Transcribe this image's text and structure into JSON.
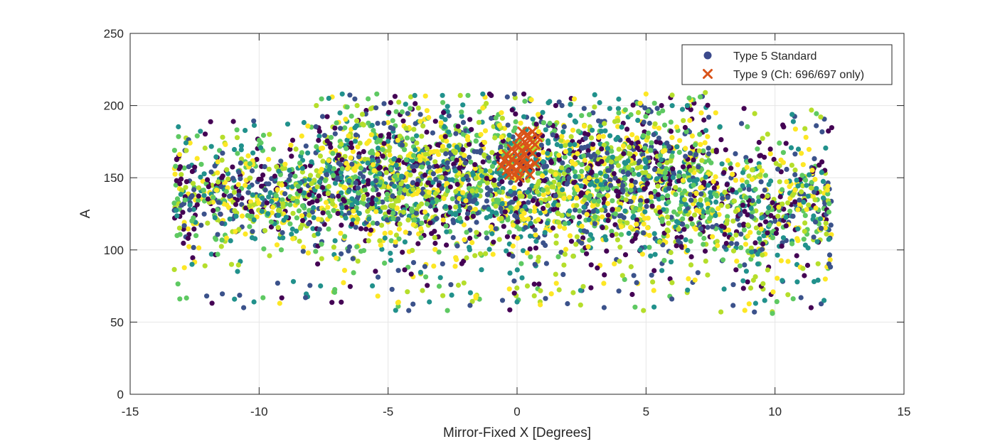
{
  "chart_data": {
    "type": "scatter",
    "title": "",
    "xlabel": "Mirror-Fixed X [Degrees]",
    "ylabel": "A",
    "xlim": [
      -15,
      15
    ],
    "ylim": [
      0,
      250
    ],
    "xticks": [
      -15,
      -10,
      -5,
      0,
      5,
      10,
      15
    ],
    "yticks": [
      0,
      50,
      100,
      150,
      200,
      250
    ],
    "grid": true,
    "legend_position": "top-right",
    "colormap": [
      "#440154",
      "#3b528b",
      "#21918c",
      "#5ec962",
      "#b5de2b",
      "#fde725"
    ],
    "series": [
      {
        "name": "Type 5 Standard",
        "marker": "circle",
        "legend_color": "#3b4a8c",
        "clusters": [
          {
            "x_range": [
              -13.3,
              -7.8
            ],
            "y_center": 138,
            "y_spread": 16,
            "y_range": [
              60,
              190
            ],
            "density": 0.55
          },
          {
            "x_range": [
              -7.8,
              7.5
            ],
            "y_center": 148,
            "y_spread": 22,
            "y_range": [
              58,
              208
            ],
            "density": 1.0
          },
          {
            "x_range": [
              7.5,
              12.2
            ],
            "y_center": 128,
            "y_spread": 20,
            "y_range": [
              57,
              198
            ],
            "density": 0.6
          }
        ],
        "points": [
          [
            -13.2,
            148
          ],
          [
            -13.0,
            131
          ],
          [
            -12.6,
            90
          ],
          [
            -12.4,
            179
          ],
          [
            -12.1,
            89
          ],
          [
            -11.6,
            161
          ],
          [
            -11.0,
            189
          ],
          [
            -10.6,
            60
          ],
          [
            -10.2,
            64
          ],
          [
            -10.0,
            176
          ],
          [
            -9.6,
            180
          ],
          [
            -9.2,
            63
          ],
          [
            -8.7,
            176
          ],
          [
            -8.2,
            67
          ],
          [
            -7.3,
            205
          ],
          [
            -7.0,
            188
          ],
          [
            -6.2,
            200
          ],
          [
            -5.4,
            68
          ],
          [
            -4.9,
            202
          ],
          [
            -4.2,
            58
          ],
          [
            -3.4,
            64
          ],
          [
            -2.7,
            58
          ],
          [
            -2.2,
            207
          ],
          [
            -1.6,
            68
          ],
          [
            -1.0,
            207
          ],
          [
            -0.1,
            208
          ],
          [
            0.0,
            64
          ],
          [
            0.3,
            203
          ],
          [
            0.4,
            75
          ],
          [
            0.9,
            62
          ],
          [
            1.5,
            200
          ],
          [
            2.6,
            198
          ],
          [
            3.2,
            202
          ],
          [
            4.2,
            197
          ],
          [
            4.9,
            58
          ],
          [
            5.0,
            208
          ],
          [
            5.6,
            200
          ],
          [
            6.0,
            66
          ],
          [
            6.6,
            200
          ],
          [
            7.1,
            206
          ],
          [
            7.3,
            209
          ],
          [
            7.7,
            195
          ],
          [
            8.8,
            198
          ],
          [
            9.2,
            57
          ],
          [
            9.6,
            65
          ],
          [
            9.9,
            56
          ],
          [
            10.5,
            69
          ],
          [
            11.2,
            178
          ],
          [
            11.4,
            60
          ],
          [
            11.6,
            186
          ],
          [
            11.9,
            65
          ],
          [
            12.1,
            132
          ]
        ]
      },
      {
        "name": "Type 9 (Ch: 696/697 only)",
        "marker": "x",
        "legend_color": "#d95319",
        "points": [
          [
            -0.6,
            158
          ],
          [
            -0.5,
            162
          ],
          [
            -0.4,
            155
          ],
          [
            -0.4,
            166
          ],
          [
            -0.3,
            152
          ],
          [
            -0.3,
            160
          ],
          [
            -0.2,
            163
          ],
          [
            -0.2,
            157
          ],
          [
            -0.1,
            168
          ],
          [
            -0.1,
            152
          ],
          [
            0.0,
            161
          ],
          [
            0.0,
            172
          ],
          [
            0.0,
            155
          ],
          [
            0.1,
            164
          ],
          [
            0.1,
            178
          ],
          [
            0.1,
            158
          ],
          [
            0.2,
            169
          ],
          [
            0.2,
            182
          ],
          [
            0.2,
            162
          ],
          [
            0.3,
            156
          ],
          [
            0.3,
            175
          ],
          [
            0.3,
            166
          ],
          [
            0.4,
            180
          ],
          [
            0.4,
            160
          ],
          [
            0.4,
            171
          ],
          [
            0.5,
            158
          ],
          [
            0.5,
            176
          ],
          [
            0.6,
            167
          ],
          [
            0.6,
            182
          ],
          [
            0.7,
            160
          ],
          [
            0.7,
            173
          ],
          [
            0.8,
            178
          ],
          [
            -0.2,
            170
          ],
          [
            0.1,
            150
          ],
          [
            0.5,
            152
          ]
        ]
      }
    ]
  }
}
